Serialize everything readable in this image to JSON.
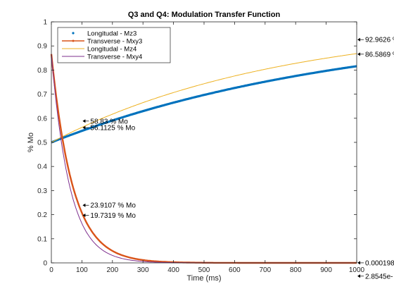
{
  "chart_data": {
    "type": "line",
    "title": "Q3 and Q4: Modulation Transfer Function",
    "xlabel": "Time (ms)",
    "ylabel": "% Mo",
    "xlim": [
      0,
      1000
    ],
    "ylim": [
      0,
      1
    ],
    "xticks": [
      "0",
      "100",
      "200",
      "300",
      "400",
      "500",
      "600",
      "700",
      "800",
      "900",
      "1000"
    ],
    "yticks": [
      "0",
      "0.1",
      "0.2",
      "0.3",
      "0.4",
      "0.5",
      "0.6",
      "0.7",
      "0.8",
      "0.9",
      "1"
    ],
    "grid": false,
    "legend_position": "top-left",
    "series": [
      {
        "name": "Longitudal - Mz3",
        "color": "#0072BD",
        "style": "markers",
        "model": "recovery",
        "x_range": [
          0,
          1000
        ],
        "M0": 0.5,
        "T1": 1000
      },
      {
        "name": "Transverse - Mxy3",
        "color": "#D95319",
        "style": "line-markers",
        "model": "decay",
        "x_range": [
          0,
          1000
        ],
        "M0": 0.866,
        "T2": 70
      },
      {
        "name": "Longitudal - Mz4",
        "color": "#EDB120",
        "style": "line",
        "model": "recovery",
        "x_range": [
          0,
          1000
        ],
        "M0": 0.5,
        "T1": 750
      },
      {
        "name": "Transverse - Mxy4",
        "color": "#7E2F8E",
        "style": "line",
        "model": "decay",
        "x_range": [
          0,
          1000
        ],
        "M0": 0.866,
        "T2": 60
      }
    ],
    "annotations": [
      {
        "x": 100,
        "y": 0.5883,
        "text": "58.83 % Mo"
      },
      {
        "x": 100,
        "y": 0.5611,
        "text": "56.1125 % Mo"
      },
      {
        "x": 100,
        "y": 0.2391,
        "text": "23.9107 % Mo"
      },
      {
        "x": 100,
        "y": 0.1973,
        "text": "19.7319 % Mo"
      },
      {
        "x": 1000,
        "y": 0.9263,
        "text": "92.9626 %"
      },
      {
        "x": 1000,
        "y": 0.8659,
        "text": "86.5869 %"
      },
      {
        "x": 1000,
        "y": 0.0002,
        "text": "0.000198"
      },
      {
        "x": 1000,
        "y": -0.055,
        "text": "2.8545e-"
      }
    ]
  }
}
